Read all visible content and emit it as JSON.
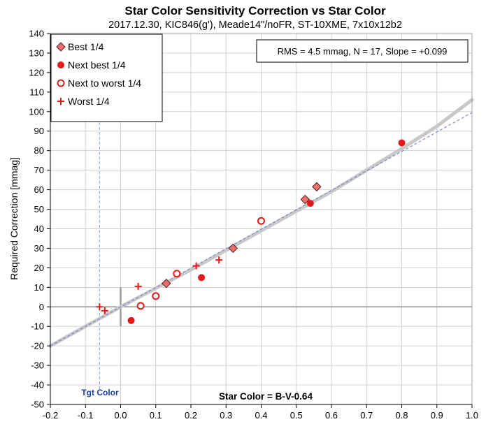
{
  "chart_data": {
    "type": "scatter",
    "title": "Star Color Sensitivity Correction vs Star Color",
    "subtitle": "2017.12.30, KIC846(g'), Meade14\"/noFR, ST-10XME, 7x10x12b2",
    "xlabel": "Star Color = B-V-0.64",
    "ylabel": "Required Correction [mmag]",
    "xlim": [
      -0.2,
      1.0
    ],
    "ylim": [
      -50,
      140
    ],
    "xticks": [
      "-0.2",
      "-0.1",
      "0.0",
      "0.1",
      "0.2",
      "0.3",
      "0.4",
      "0.5",
      "0.6",
      "0.7",
      "0.8",
      "0.9",
      "1.0"
    ],
    "yticks": [
      "-50",
      "-40",
      "-30",
      "-20",
      "-10",
      "0",
      "10",
      "20",
      "30",
      "40",
      "50",
      "60",
      "70",
      "80",
      "90",
      "100",
      "110",
      "120",
      "130",
      "140"
    ],
    "grid": true,
    "legend_position": "top-left",
    "stats_text": "RMS = 4.5 mmag, N = 17, Slope = +0.099",
    "target_label": "Tgt Color",
    "target_x": -0.06,
    "series": [
      {
        "name": "Best 1/4",
        "marker": "diamond",
        "color": "#e8706f",
        "points": [
          [
            0.13,
            12
          ],
          [
            0.32,
            30
          ],
          [
            0.525,
            55
          ],
          [
            0.558,
            61.5
          ]
        ]
      },
      {
        "name": "Next best 1/4",
        "marker": "filled-circle",
        "color": "#e31a1c",
        "points": [
          [
            0.03,
            -7
          ],
          [
            0.23,
            15
          ],
          [
            0.54,
            53
          ],
          [
            0.8,
            84
          ]
        ]
      },
      {
        "name": "Next to worst 1/4",
        "marker": "open-circle",
        "color": "#e31a1c",
        "points": [
          [
            0.057,
            0.5
          ],
          [
            0.1,
            5.5
          ],
          [
            0.16,
            17
          ],
          [
            0.4,
            44
          ]
        ]
      },
      {
        "name": "Worst 1/4",
        "marker": "plus",
        "color": "#e31a1c",
        "points": [
          [
            -0.06,
            0
          ],
          [
            -0.045,
            -2
          ],
          [
            0.05,
            10.5
          ],
          [
            0.215,
            21
          ],
          [
            0.28,
            24
          ]
        ]
      }
    ],
    "fit_curve": {
      "color": "#c8c8c8",
      "points": [
        [
          -0.2,
          -20
        ],
        [
          0.0,
          0
        ],
        [
          0.2,
          19
        ],
        [
          0.4,
          39
        ],
        [
          0.6,
          59
        ],
        [
          0.7,
          70
        ],
        [
          0.8,
          81
        ],
        [
          0.9,
          92.5
        ],
        [
          1.0,
          106
        ]
      ]
    },
    "linear_fit": {
      "color": "#6a7ec8",
      "points": [
        [
          -0.2,
          -20
        ],
        [
          1.0,
          99.5
        ]
      ]
    },
    "crosshair": {
      "color": "#9a9a9a",
      "x": 0.0,
      "y_range": [
        -10,
        10
      ]
    }
  }
}
